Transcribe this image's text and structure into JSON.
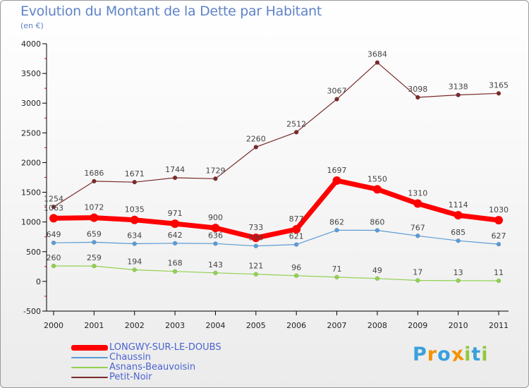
{
  "header": {
    "title": "Evolution du Montant de la Dette par Habitant",
    "subtitle": "(en €)"
  },
  "chart_data": {
    "type": "line",
    "title": "Evolution du Montant de la Dette par Habitant",
    "subtitle": "(en €)",
    "xlabel": "",
    "ylabel": "",
    "categories": [
      "2000",
      "2001",
      "2002",
      "2003",
      "2004",
      "2005",
      "2006",
      "2007",
      "2008",
      "2009",
      "2010",
      "2011"
    ],
    "ylim": [
      -500,
      4000
    ],
    "yticks": [
      -500,
      0,
      500,
      1000,
      1500,
      2000,
      2500,
      3000,
      3500,
      4000
    ],
    "grid": false,
    "legend_position": "bottom-left",
    "series": [
      {
        "name": "LONGWY-SUR-LE-DOUBS",
        "color": "#ff0000",
        "values": [
          1063,
          1072,
          1035,
          971,
          900,
          733,
          877,
          1697,
          1550,
          1310,
          1114,
          1030
        ]
      },
      {
        "name": "Chaussin",
        "color": "#5b9bd5",
        "values": [
          649,
          659,
          634,
          642,
          636,
          596,
          621,
          862,
          860,
          767,
          685,
          627
        ]
      },
      {
        "name": "Asnans-Beauvoisin",
        "color": "#92d050",
        "values": [
          260,
          259,
          194,
          168,
          143,
          121,
          96,
          71,
          49,
          17,
          13,
          11
        ]
      },
      {
        "name": "Petit-Noir",
        "color": "#7b2a2a",
        "values": [
          1254,
          1686,
          1671,
          1744,
          1729,
          2260,
          2512,
          3067,
          3684,
          3098,
          3138,
          3165
        ]
      }
    ]
  },
  "logo": {
    "letters": [
      "P",
      "r",
      "o",
      "x",
      "i",
      "t",
      "i"
    ],
    "colors": [
      "#3aa0dc",
      "#f39200",
      "#3aa0dc",
      "#f39200",
      "#92c83e",
      "#3aa0dc",
      "#92c83e"
    ]
  }
}
